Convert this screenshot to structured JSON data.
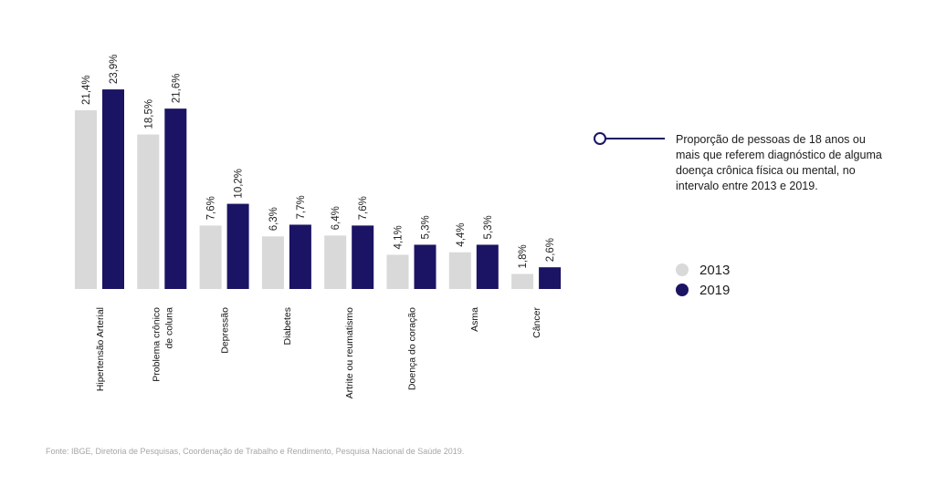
{
  "chart_data": {
    "type": "bar",
    "categories": [
      [
        "Hipertensão Arterial"
      ],
      [
        "Problema crônico",
        "de coluna"
      ],
      [
        "Depressão"
      ],
      [
        "Diabetes"
      ],
      [
        "Artrite ou reumatismo"
      ],
      [
        "Doença do coração"
      ],
      [
        "Asma"
      ],
      [
        "Câncer"
      ]
    ],
    "series": [
      {
        "name": "2013",
        "color": "#d9d9d9",
        "values": [
          21.4,
          18.5,
          7.6,
          6.3,
          6.4,
          4.1,
          4.4,
          1.8
        ],
        "labels": [
          "21,4%",
          "18,5%",
          "7,6%",
          "6,3%",
          "6,4%",
          "4,1%",
          "4,4%",
          "1,8%"
        ]
      },
      {
        "name": "2019",
        "color": "#1b1464",
        "values": [
          23.9,
          21.6,
          10.2,
          7.7,
          7.6,
          5.3,
          5.3,
          2.6
        ],
        "labels": [
          "23,9%",
          "21,6%",
          "10,2%",
          "7,7%",
          "7,6%",
          "5,3%",
          "5,3%",
          "2,6%"
        ]
      }
    ],
    "ylim": [
      0,
      24
    ],
    "grid": false,
    "legend_position": "right"
  },
  "annotation": {
    "text": "Proporção de pessoas de 18 anos ou mais que referem diagnóstico de alguma doença crônica física ou mental, no intervalo entre 2013 e 2019.",
    "marker_color": "#1b1464"
  },
  "legend": [
    {
      "label": "2013",
      "color": "#d9d9d9"
    },
    {
      "label": "2019",
      "color": "#1b1464"
    }
  ],
  "source": "Fonte: IBGE, Diretoria de Pesquisas, Coordenação de Trabalho e Rendimento, Pesquisa Nacional de Saúde 2019."
}
